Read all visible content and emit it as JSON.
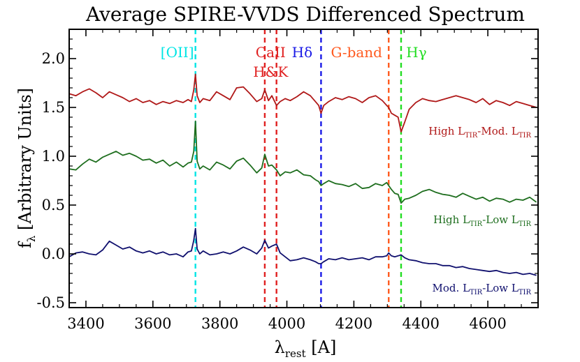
{
  "chart_data": {
    "type": "line",
    "title": "Average SPIRE-VVDS Differenced Spectrum",
    "xlabel": {
      "main": "λ",
      "sub": "rest",
      "tail": " [A]"
    },
    "ylabel": {
      "main": "f",
      "sub": "λ",
      "tail": " [Arbitrary Units]"
    },
    "xlim": [
      3350,
      4750
    ],
    "ylim": [
      -0.55,
      2.3
    ],
    "xticks": [
      3400,
      3600,
      3800,
      4000,
      4200,
      4400,
      4600
    ],
    "yticks": [
      -0.5,
      0.0,
      0.5,
      1.0,
      1.5,
      2.0
    ],
    "ytick_labels": [
      "-0.5",
      "0.0",
      "0.5",
      "1.0",
      "1.5",
      "2.0"
    ],
    "grid": false,
    "lines": [
      {
        "label": "[OII]",
        "x": 3727,
        "color": "#00e5e5",
        "label_lines": [
          "[OII]"
        ]
      },
      {
        "label": "CaII H&K (K)",
        "x": 3934,
        "color": "#e02020",
        "label_lines": [
          "CaII",
          "H&K"
        ]
      },
      {
        "label": "CaII H&K (H)",
        "x": 3969,
        "color": "#e02020",
        "label_lines": []
      },
      {
        "label": "Hδ",
        "x": 4102,
        "color": "#1a1ae6",
        "label_lines": [
          "Hδ"
        ]
      },
      {
        "label": "G-band",
        "x": 4304,
        "color": "#ff5a1f",
        "label_lines": [
          "G-band"
        ]
      },
      {
        "label": "Hγ",
        "x": 4341,
        "color": "#22dd22",
        "label_lines": [
          "Hγ"
        ]
      }
    ],
    "series": [
      {
        "name": "High L_TIR-Mod. L_TIR",
        "label_parts": [
          "High L",
          "TIR",
          "-Mod. L",
          "TIR"
        ],
        "color": "#b01818",
        "x": [
          3350,
          3370,
          3390,
          3410,
          3430,
          3450,
          3470,
          3490,
          3510,
          3530,
          3550,
          3570,
          3590,
          3610,
          3630,
          3650,
          3670,
          3690,
          3705,
          3715,
          3722,
          3727,
          3732,
          3740,
          3750,
          3770,
          3790,
          3810,
          3830,
          3850,
          3870,
          3890,
          3910,
          3925,
          3934,
          3945,
          3955,
          3969,
          3980,
          3995,
          4010,
          4030,
          4050,
          4070,
          4085,
          4095,
          4102,
          4110,
          4125,
          4145,
          4165,
          4185,
          4205,
          4225,
          4245,
          4265,
          4285,
          4298,
          4304,
          4312,
          4322,
          4332,
          4341,
          4352,
          4365,
          4385,
          4405,
          4425,
          4445,
          4465,
          4485,
          4505,
          4525,
          4545,
          4565,
          4585,
          4605,
          4625,
          4645,
          4665,
          4685,
          4705,
          4725,
          4745
        ],
        "y": [
          1.64,
          1.62,
          1.66,
          1.69,
          1.65,
          1.6,
          1.66,
          1.63,
          1.6,
          1.56,
          1.59,
          1.55,
          1.57,
          1.53,
          1.56,
          1.54,
          1.57,
          1.55,
          1.58,
          1.56,
          1.68,
          1.84,
          1.62,
          1.55,
          1.59,
          1.57,
          1.66,
          1.62,
          1.58,
          1.7,
          1.71,
          1.64,
          1.56,
          1.59,
          1.68,
          1.57,
          1.62,
          1.52,
          1.56,
          1.59,
          1.57,
          1.61,
          1.66,
          1.62,
          1.56,
          1.52,
          1.44,
          1.52,
          1.56,
          1.6,
          1.58,
          1.61,
          1.59,
          1.55,
          1.6,
          1.62,
          1.57,
          1.52,
          1.5,
          1.44,
          1.42,
          1.4,
          1.25,
          1.35,
          1.48,
          1.55,
          1.59,
          1.57,
          1.56,
          1.58,
          1.6,
          1.62,
          1.6,
          1.58,
          1.55,
          1.59,
          1.53,
          1.57,
          1.55,
          1.52,
          1.56,
          1.54,
          1.52,
          1.5
        ]
      },
      {
        "name": "High L_TIR-Low L_TIR",
        "label_parts": [
          "High L",
          "TIR",
          "-Low L",
          "TIR"
        ],
        "color": "#1e6e1e",
        "x": [
          3350,
          3370,
          3390,
          3410,
          3430,
          3450,
          3470,
          3490,
          3510,
          3530,
          3550,
          3570,
          3590,
          3610,
          3630,
          3650,
          3670,
          3690,
          3705,
          3715,
          3722,
          3727,
          3732,
          3740,
          3750,
          3770,
          3790,
          3810,
          3830,
          3850,
          3870,
          3890,
          3910,
          3925,
          3934,
          3945,
          3955,
          3969,
          3980,
          3995,
          4010,
          4030,
          4050,
          4070,
          4085,
          4095,
          4102,
          4110,
          4125,
          4145,
          4165,
          4185,
          4205,
          4225,
          4245,
          4265,
          4285,
          4298,
          4304,
          4312,
          4322,
          4332,
          4341,
          4352,
          4365,
          4385,
          4405,
          4425,
          4445,
          4465,
          4485,
          4505,
          4525,
          4545,
          4565,
          4585,
          4605,
          4625,
          4645,
          4665,
          4685,
          4705,
          4725,
          4745
        ],
        "y": [
          0.87,
          0.86,
          0.92,
          0.97,
          0.94,
          0.99,
          1.02,
          1.05,
          1.01,
          1.03,
          1.0,
          0.96,
          0.97,
          0.93,
          0.96,
          0.9,
          0.94,
          0.89,
          0.93,
          0.94,
          1.05,
          1.36,
          0.95,
          0.87,
          0.9,
          0.86,
          0.94,
          0.91,
          0.87,
          0.95,
          0.98,
          0.91,
          0.83,
          0.88,
          1.02,
          0.9,
          0.91,
          0.86,
          0.8,
          0.84,
          0.83,
          0.86,
          0.81,
          0.8,
          0.76,
          0.74,
          0.7,
          0.72,
          0.75,
          0.72,
          0.71,
          0.69,
          0.72,
          0.67,
          0.68,
          0.72,
          0.7,
          0.73,
          0.7,
          0.66,
          0.62,
          0.61,
          0.52,
          0.56,
          0.57,
          0.6,
          0.64,
          0.66,
          0.63,
          0.61,
          0.6,
          0.58,
          0.62,
          0.59,
          0.56,
          0.58,
          0.54,
          0.57,
          0.56,
          0.53,
          0.56,
          0.55,
          0.58,
          0.53
        ]
      },
      {
        "name": "Mod. L_TIR-Low L_TIR",
        "label_parts": [
          "Mod. L",
          "TIR",
          "-Low L",
          "TIR"
        ],
        "color": "#10106e",
        "x": [
          3350,
          3370,
          3390,
          3410,
          3430,
          3450,
          3470,
          3490,
          3510,
          3530,
          3550,
          3570,
          3590,
          3610,
          3630,
          3650,
          3670,
          3690,
          3705,
          3715,
          3722,
          3727,
          3732,
          3740,
          3750,
          3770,
          3790,
          3810,
          3830,
          3850,
          3870,
          3890,
          3910,
          3925,
          3934,
          3945,
          3955,
          3969,
          3980,
          3995,
          4010,
          4030,
          4050,
          4070,
          4085,
          4095,
          4102,
          4110,
          4125,
          4145,
          4165,
          4185,
          4205,
          4225,
          4245,
          4265,
          4285,
          4298,
          4304,
          4312,
          4322,
          4332,
          4341,
          4352,
          4365,
          4385,
          4405,
          4425,
          4445,
          4465,
          4485,
          4505,
          4525,
          4545,
          4565,
          4585,
          4605,
          4625,
          4645,
          4665,
          4685,
          4705,
          4725,
          4745
        ],
        "y": [
          -0.03,
          0.01,
          0.02,
          0.0,
          -0.01,
          0.04,
          0.13,
          0.09,
          0.05,
          0.07,
          0.03,
          0.01,
          0.03,
          0.0,
          0.02,
          -0.01,
          0.0,
          -0.03,
          0.02,
          0.03,
          0.14,
          0.26,
          0.05,
          0.0,
          0.03,
          -0.01,
          0.0,
          0.02,
          0.0,
          0.03,
          0.07,
          0.04,
          0.0,
          0.06,
          0.14,
          0.06,
          0.08,
          0.1,
          0.01,
          -0.03,
          -0.07,
          -0.06,
          -0.04,
          -0.06,
          -0.08,
          -0.1,
          -0.1,
          -0.08,
          -0.05,
          -0.06,
          -0.04,
          -0.06,
          -0.05,
          -0.04,
          -0.06,
          -0.03,
          -0.03,
          -0.02,
          0.01,
          -0.02,
          -0.03,
          -0.02,
          -0.01,
          -0.04,
          -0.06,
          -0.07,
          -0.09,
          -0.1,
          -0.1,
          -0.12,
          -0.12,
          -0.14,
          -0.13,
          -0.15,
          -0.16,
          -0.17,
          -0.18,
          -0.17,
          -0.19,
          -0.2,
          -0.19,
          -0.21,
          -0.2,
          -0.22
        ]
      }
    ]
  }
}
